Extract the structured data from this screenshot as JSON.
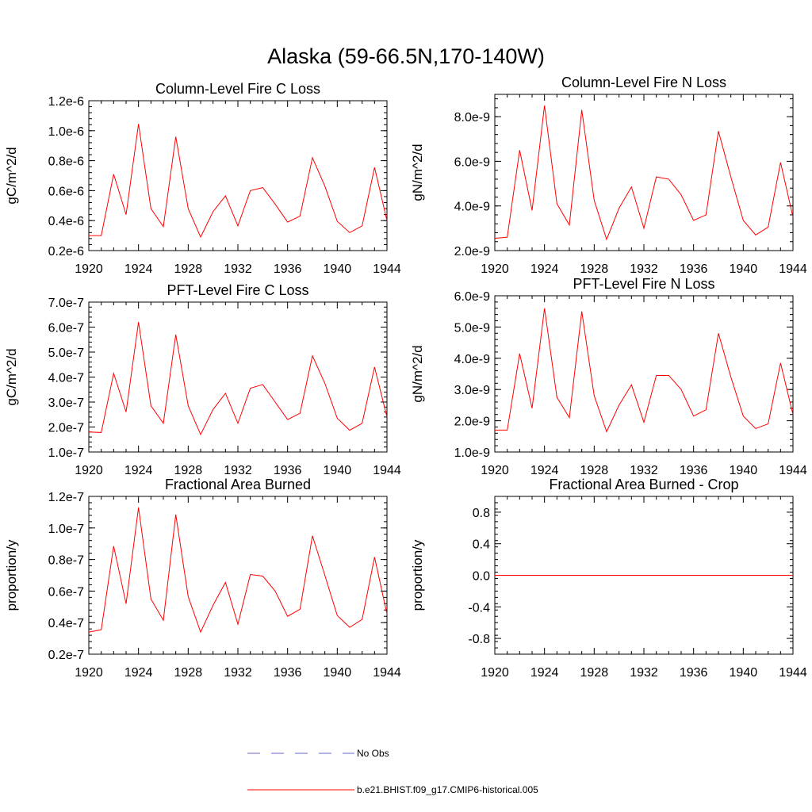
{
  "page_title": "Alaska (59-66.5N,170-140W)",
  "colors": {
    "model_series": "#ff0000",
    "obs_series": "#6666cc",
    "axis": "#000000"
  },
  "legend": [
    {
      "label": "No Obs",
      "style": "dashed",
      "color": "#6666cc"
    },
    {
      "label": "b.e21.BHIST.f09_g17.CMIP6-historical.005",
      "style": "solid",
      "color": "#ff0000"
    }
  ],
  "chart_data": [
    {
      "type": "line",
      "title": "Column-Level Fire C Loss",
      "ylabel": "gC/m^2/d",
      "xlim": [
        1920,
        1944
      ],
      "xticks": [
        "1920",
        "1924",
        "1928",
        "1932",
        "1936",
        "1940",
        "1944"
      ],
      "ylim": [
        2e-07,
        1.2e-06
      ],
      "yticks": [
        {
          "v": 2e-07,
          "label": "0.2e-6"
        },
        {
          "v": 4e-07,
          "label": "0.4e-6"
        },
        {
          "v": 6e-07,
          "label": "0.6e-6"
        },
        {
          "v": 8e-07,
          "label": "0.8e-6"
        },
        {
          "v": 1e-06,
          "label": "1.0e-6"
        },
        {
          "v": 1.2e-06,
          "label": "1.2e-6"
        }
      ],
      "x": [
        1920,
        1921,
        1922,
        1923,
        1924,
        1925,
        1926,
        1927,
        1928,
        1929,
        1930,
        1931,
        1932,
        1933,
        1934,
        1935,
        1936,
        1937,
        1938,
        1939,
        1940,
        1941,
        1942,
        1943,
        1944
      ],
      "series": [
        {
          "name": "b.e21.BHIST.f09_g17.CMIP6-historical.005",
          "values": [
            3e-07,
            3e-07,
            7.1e-07,
            4.4e-07,
            1.045e-06,
            4.8e-07,
            3.6e-07,
            9.6e-07,
            4.8e-07,
            2.9e-07,
            4.6e-07,
            5.65e-07,
            3.65e-07,
            6e-07,
            6.2e-07,
            5.1e-07,
            3.9e-07,
            4.3e-07,
            8.2e-07,
            6.3e-07,
            3.95e-07,
            3.2e-07,
            3.65e-07,
            7.55e-07,
            4e-07
          ]
        }
      ]
    },
    {
      "type": "line",
      "title": "Column-Level Fire N Loss",
      "ylabel": "gN/m^2/d",
      "xlim": [
        1920,
        1944
      ],
      "xticks": [
        "1920",
        "1924",
        "1928",
        "1932",
        "1936",
        "1940",
        "1944"
      ],
      "ylim": [
        2e-09,
        9e-09
      ],
      "yticks": [
        {
          "v": 2e-09,
          "label": "2.0e-9"
        },
        {
          "v": 4e-09,
          "label": "4.0e-9"
        },
        {
          "v": 6e-09,
          "label": "6.0e-9"
        },
        {
          "v": 8e-09,
          "label": "8.0e-9"
        }
      ],
      "x": [
        1920,
        1921,
        1922,
        1923,
        1924,
        1925,
        1926,
        1927,
        1928,
        1929,
        1930,
        1931,
        1932,
        1933,
        1934,
        1935,
        1936,
        1937,
        1938,
        1939,
        1940,
        1941,
        1942,
        1943,
        1944
      ],
      "series": [
        {
          "name": "b.e21.BHIST.f09_g17.CMIP6-historical.005",
          "values": [
            2.55e-09,
            2.6e-09,
            6.5e-09,
            3.8e-09,
            8.5e-09,
            4.1e-09,
            3.15e-09,
            8.3e-09,
            4.25e-09,
            2.5e-09,
            3.9e-09,
            4.85e-09,
            3e-09,
            5.3e-09,
            5.2e-09,
            4.5e-09,
            3.35e-09,
            3.6e-09,
            7.35e-09,
            5.3e-09,
            3.35e-09,
            2.7e-09,
            3.05e-09,
            5.95e-09,
            3.5e-09
          ]
        }
      ]
    },
    {
      "type": "line",
      "title": "PFT-Level Fire C Loss",
      "ylabel": "gC/m^2/d",
      "xlim": [
        1920,
        1944
      ],
      "xticks": [
        "1920",
        "1924",
        "1928",
        "1932",
        "1936",
        "1940",
        "1944"
      ],
      "ylim": [
        1e-07,
        7e-07
      ],
      "yticks": [
        {
          "v": 1e-07,
          "label": "1.0e-7"
        },
        {
          "v": 2e-07,
          "label": "2.0e-7"
        },
        {
          "v": 3e-07,
          "label": "3.0e-7"
        },
        {
          "v": 4e-07,
          "label": "4.0e-7"
        },
        {
          "v": 5e-07,
          "label": "5.0e-7"
        },
        {
          "v": 6e-07,
          "label": "6.0e-7"
        },
        {
          "v": 7e-07,
          "label": "7.0e-7"
        }
      ],
      "x": [
        1920,
        1921,
        1922,
        1923,
        1924,
        1925,
        1926,
        1927,
        1928,
        1929,
        1930,
        1931,
        1932,
        1933,
        1934,
        1935,
        1936,
        1937,
        1938,
        1939,
        1940,
        1941,
        1942,
        1943,
        1944
      ],
      "series": [
        {
          "name": "b.e21.BHIST.f09_g17.CMIP6-historical.005",
          "values": [
            1.8e-07,
            1.78e-07,
            4.15e-07,
            2.6e-07,
            6.2e-07,
            2.85e-07,
            2.15e-07,
            5.7e-07,
            2.85e-07,
            1.7e-07,
            2.7e-07,
            3.35e-07,
            2.15e-07,
            3.55e-07,
            3.7e-07,
            3e-07,
            2.3e-07,
            2.55e-07,
            4.85e-07,
            3.75e-07,
            2.35e-07,
            1.87e-07,
            2.15e-07,
            4.4e-07,
            2.4e-07
          ]
        }
      ]
    },
    {
      "type": "line",
      "title": "PFT-Level Fire N Loss",
      "ylabel": "gN/m^2/d",
      "xlim": [
        1920,
        1944
      ],
      "xticks": [
        "1920",
        "1924",
        "1928",
        "1932",
        "1936",
        "1940",
        "1944"
      ],
      "ylim": [
        1e-09,
        6e-09
      ],
      "yticks": [
        {
          "v": 1e-09,
          "label": "1.0e-9"
        },
        {
          "v": 2e-09,
          "label": "2.0e-9"
        },
        {
          "v": 3e-09,
          "label": "3.0e-9"
        },
        {
          "v": 4e-09,
          "label": "4.0e-9"
        },
        {
          "v": 5e-09,
          "label": "5.0e-9"
        },
        {
          "v": 6e-09,
          "label": "6.0e-9"
        }
      ],
      "x": [
        1920,
        1921,
        1922,
        1923,
        1924,
        1925,
        1926,
        1927,
        1928,
        1929,
        1930,
        1931,
        1932,
        1933,
        1934,
        1935,
        1936,
        1937,
        1938,
        1939,
        1940,
        1941,
        1942,
        1943,
        1944
      ],
      "series": [
        {
          "name": "b.e21.BHIST.f09_g17.CMIP6-historical.005",
          "values": [
            1.7e-09,
            1.7e-09,
            4.15e-09,
            2.4e-09,
            5.6e-09,
            2.75e-09,
            2.1e-09,
            5.5e-09,
            2.8e-09,
            1.65e-09,
            2.5e-09,
            3.15e-09,
            1.95e-09,
            3.45e-09,
            3.45e-09,
            3e-09,
            2.15e-09,
            2.35e-09,
            4.8e-09,
            3.4e-09,
            2.15e-09,
            1.75e-09,
            1.9e-09,
            3.85e-09,
            2.2e-09
          ]
        }
      ]
    },
    {
      "type": "line",
      "title": "Fractional Area Burned",
      "ylabel": "proportion/y",
      "xlim": [
        1920,
        1944
      ],
      "xticks": [
        "1920",
        "1924",
        "1928",
        "1932",
        "1936",
        "1940",
        "1944"
      ],
      "ylim": [
        2e-08,
        1.2e-07
      ],
      "yticks": [
        {
          "v": 2e-08,
          "label": "0.2e-7"
        },
        {
          "v": 4e-08,
          "label": "0.4e-7"
        },
        {
          "v": 6e-08,
          "label": "0.6e-7"
        },
        {
          "v": 8e-08,
          "label": "0.8e-7"
        },
        {
          "v": 1e-07,
          "label": "1.0e-7"
        },
        {
          "v": 1.2e-07,
          "label": "1.2e-7"
        }
      ],
      "x": [
        1920,
        1921,
        1922,
        1923,
        1924,
        1925,
        1926,
        1927,
        1928,
        1929,
        1930,
        1931,
        1932,
        1933,
        1934,
        1935,
        1936,
        1937,
        1938,
        1939,
        1940,
        1941,
        1942,
        1943,
        1944
      ],
      "series": [
        {
          "name": "b.e21.BHIST.f09_g17.CMIP6-historical.005",
          "values": [
            3.4e-08,
            3.55e-08,
            8.85e-08,
            5.2e-08,
            1.13e-07,
            5.5e-08,
            4.15e-08,
            1.085e-07,
            5.65e-08,
            3.4e-08,
            5.1e-08,
            6.55e-08,
            3.9e-08,
            7.05e-08,
            6.95e-08,
            6e-08,
            4.4e-08,
            4.85e-08,
            9.5e-08,
            7e-08,
            4.45e-08,
            3.7e-08,
            4.2e-08,
            8.15e-08,
            4.55e-08
          ]
        }
      ]
    },
    {
      "type": "line",
      "title": "Fractional Area Burned - Crop",
      "ylabel": "proportion/y",
      "xlim": [
        1920,
        1944
      ],
      "xticks": [
        "1920",
        "1924",
        "1928",
        "1932",
        "1936",
        "1940",
        "1944"
      ],
      "ylim": [
        -1.0,
        1.0
      ],
      "yticks": [
        {
          "v": -0.8,
          "label": "-0.8"
        },
        {
          "v": -0.4,
          "label": "-0.4"
        },
        {
          "v": 0.0,
          "label": "0.0"
        },
        {
          "v": 0.4,
          "label": "0.4"
        },
        {
          "v": 0.8,
          "label": "0.8"
        }
      ],
      "x": [
        1920,
        1921,
        1922,
        1923,
        1924,
        1925,
        1926,
        1927,
        1928,
        1929,
        1930,
        1931,
        1932,
        1933,
        1934,
        1935,
        1936,
        1937,
        1938,
        1939,
        1940,
        1941,
        1942,
        1943,
        1944
      ],
      "series": [
        {
          "name": "b.e21.BHIST.f09_g17.CMIP6-historical.005",
          "values": [
            0,
            0,
            0,
            0,
            0,
            0,
            0,
            0,
            0,
            0,
            0,
            0,
            0,
            0,
            0,
            0,
            0,
            0,
            0,
            0,
            0,
            0,
            0,
            0,
            0
          ]
        }
      ]
    }
  ]
}
